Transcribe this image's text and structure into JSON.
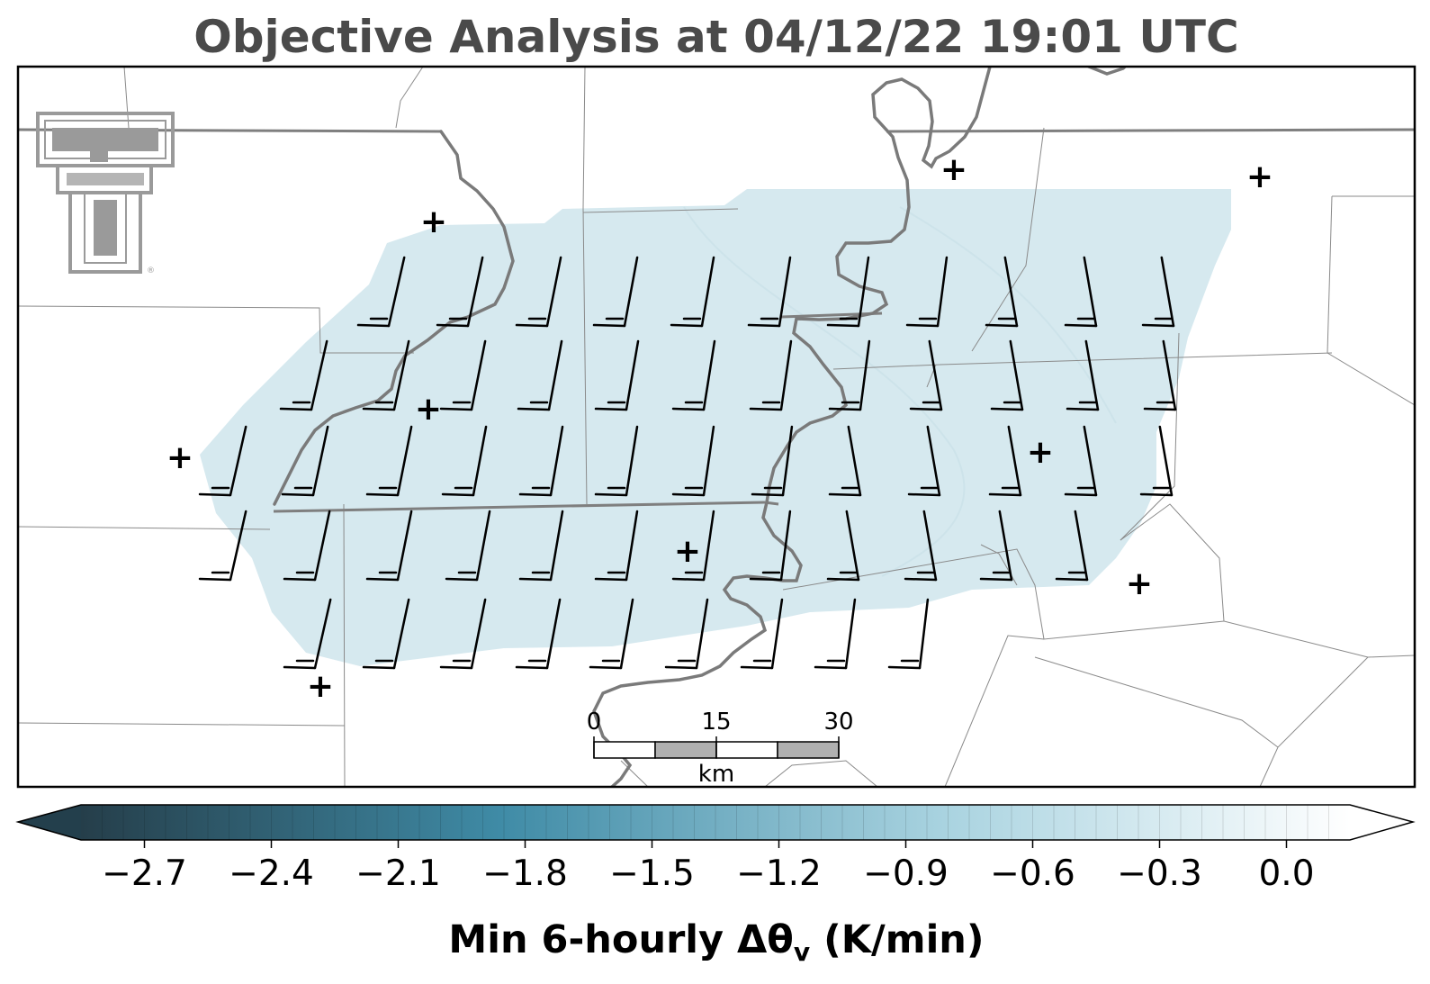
{
  "title": "Objective Analysis at 04/12/22 19:01 UTC",
  "colorbar": {
    "label_main": "Min 6-hourly Δθ",
    "label_sub": "v",
    "label_unit": " (K/min)",
    "ticks": [
      "−2.7",
      "−2.4",
      "−2.1",
      "−1.8",
      "−1.5",
      "−1.2",
      "−0.9",
      "−0.6",
      "−0.3",
      "0.0"
    ],
    "tick_values": [
      -2.7,
      -2.4,
      -2.1,
      -1.8,
      -1.5,
      -1.2,
      -0.9,
      -0.6,
      -0.3,
      0.0
    ],
    "vmin": -2.85,
    "vmax": 0.15,
    "colors": [
      "#253e4a",
      "#3f8ba6",
      "#a9d3e0",
      "#ffffff"
    ],
    "extend": "both"
  },
  "scalebar": {
    "labels": [
      "0",
      "15",
      "30"
    ],
    "unit": "km"
  },
  "logo": {
    "name": "texas-tech-double-t-logo",
    "color": "#9a9a9a",
    "mark": "®"
  },
  "map": {
    "shaded_field_color": "#d6e9ef",
    "shaded_field_value": -0.5,
    "river_color": "#7a7a7a",
    "boundary_color": "#888888",
    "station_marker": "+",
    "station_count": 11,
    "wind_barb_count": 61
  }
}
